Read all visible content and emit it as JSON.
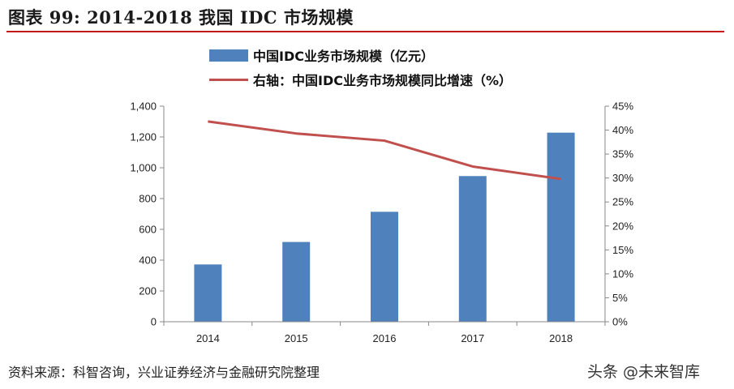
{
  "title": "图表 99: 2014-2018 我国 IDC 市场规模",
  "source": "资料来源：科智咨询，兴业证券经济与金融研究院整理",
  "watermark": "头条 @未来智库",
  "colors": {
    "bar": "#4f81bd",
    "line": "#c0504d",
    "title_rule": "#c41a1a"
  },
  "chart_data": {
    "type": "bar",
    "categories": [
      "2014",
      "2015",
      "2016",
      "2017",
      "2018"
    ],
    "series": [
      {
        "name": "中国IDC业务市场规模（亿元）",
        "type": "bar",
        "axis": "left",
        "values": [
          372,
          518,
          714,
          946,
          1228
        ]
      },
      {
        "name": "右轴：中国IDC业务市场规模同比增速（%）",
        "type": "line",
        "axis": "right",
        "values": [
          41.8,
          39.3,
          37.8,
          32.4,
          29.8
        ]
      }
    ],
    "y_left": {
      "min": 0,
      "max": 1400,
      "ticks": [
        "0",
        "200",
        "400",
        "600",
        "800",
        "1,000",
        "1,200",
        "1,400"
      ]
    },
    "y_right": {
      "min": 0,
      "max": 45,
      "ticks": [
        "0%",
        "5%",
        "10%",
        "15%",
        "20%",
        "25%",
        "30%",
        "35%",
        "40%",
        "45%"
      ]
    },
    "grid": false,
    "legend": "top"
  }
}
